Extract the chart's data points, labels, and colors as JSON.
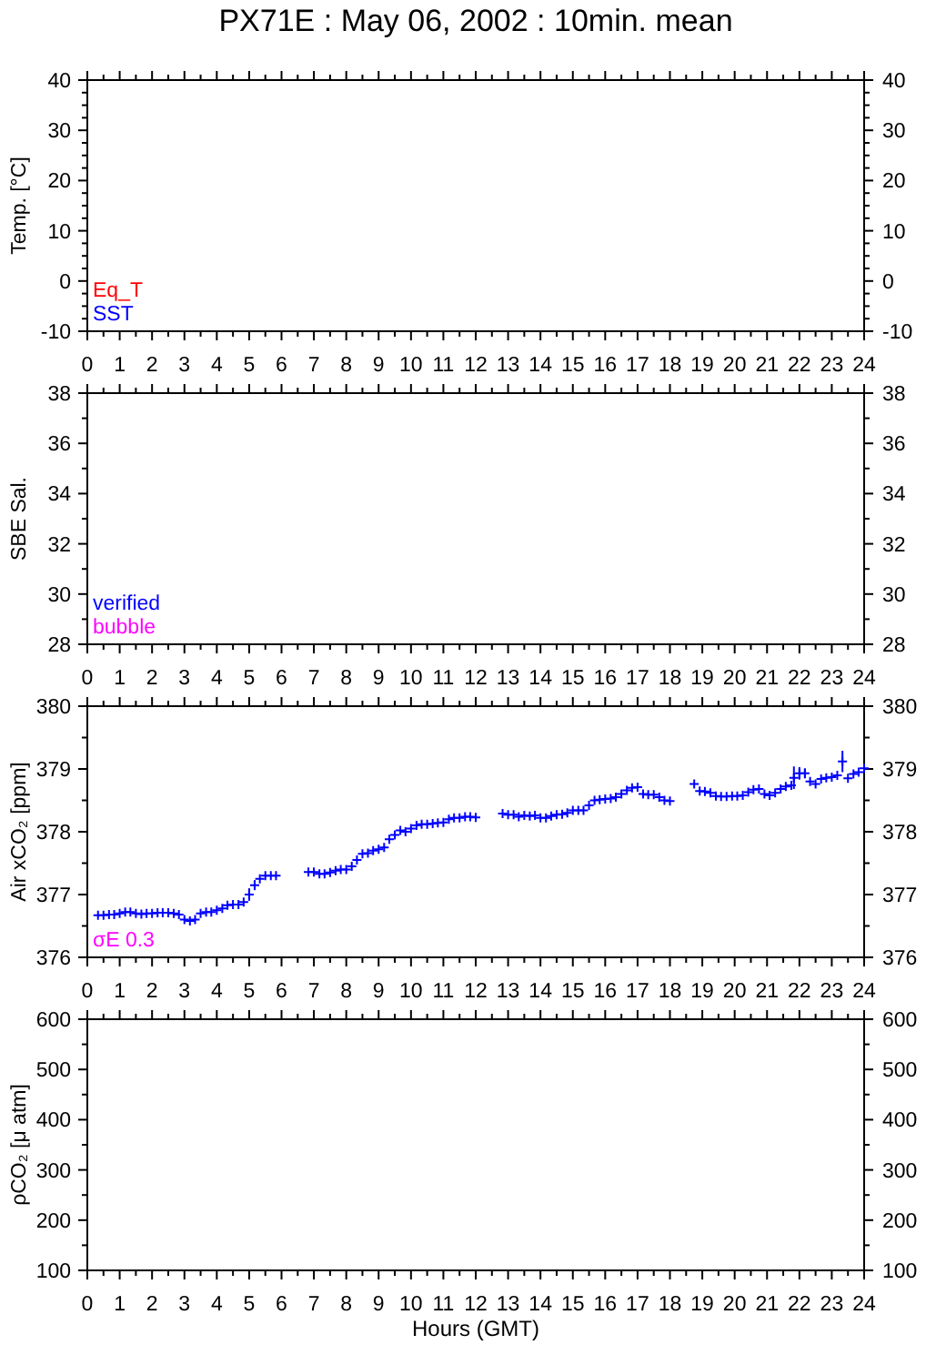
{
  "chart_data": [
    {
      "type": "scatter",
      "title": "PX71E : May 06, 2002 : 10min. mean",
      "ylabel": "Temp. [°C]",
      "annotations": [
        "Eq_T",
        "SST"
      ],
      "xlim": [
        0,
        24
      ],
      "xticks": [
        0,
        {
          "value": 0.5,
          "label": null
        },
        1,
        {
          "value": 1.5,
          "label": null
        },
        2,
        {
          "value": 2.5,
          "label": null
        },
        3,
        {
          "value": 3.5,
          "label": null
        },
        4,
        {
          "value": 4.5,
          "label": null
        },
        5,
        {
          "value": 5.5,
          "label": null
        },
        6,
        {
          "value": 6.5,
          "label": null
        },
        7,
        {
          "value": 7.5,
          "label": null
        },
        8,
        {
          "value": 8.5,
          "label": null
        },
        9,
        {
          "value": 9.5,
          "label": null
        },
        10,
        {
          "value": 10.5,
          "label": null
        },
        11,
        {
          "value": 11.5,
          "label": null
        },
        12,
        {
          "value": 12.5,
          "label": null
        },
        13,
        {
          "value": 13.5,
          "label": null
        },
        14,
        {
          "value": 14.5,
          "label": null
        },
        15,
        {
          "value": 15.5,
          "label": null
        },
        16,
        {
          "value": 16.5,
          "label": null
        },
        17,
        {
          "value": 17.5,
          "label": null
        },
        18,
        {
          "value": 18.5,
          "label": null
        },
        19,
        {
          "value": 19.5,
          "label": null
        },
        20,
        {
          "value": 20.5,
          "label": null
        },
        21,
        {
          "value": 21.5,
          "label": null
        },
        22,
        {
          "value": 22.5,
          "label": null
        },
        23,
        {
          "value": 23.5,
          "label": null
        },
        24
      ],
      "ylim": [
        -10,
        40
      ],
      "yticks": [
        -10,
        {
          "value": -7.5,
          "label": null
        },
        {
          "value": -5,
          "label": null
        },
        {
          "value": -2.5,
          "label": null
        },
        0,
        {
          "value": 2.5,
          "label": null
        },
        {
          "value": 5,
          "label": null
        },
        {
          "value": 7.5,
          "label": null
        },
        10,
        {
          "value": 12.5,
          "label": null
        },
        {
          "value": 15,
          "label": null
        },
        {
          "value": 17.5,
          "label": null
        },
        20,
        {
          "value": 22.5,
          "label": null
        },
        {
          "value": 25,
          "label": null
        },
        {
          "value": 27.5,
          "label": null
        },
        30,
        {
          "value": 32.5,
          "label": null
        },
        {
          "value": 35,
          "label": null
        },
        {
          "value": 37.5,
          "label": null
        },
        40
      ],
      "y2lim": [
        -10,
        40
      ],
      "y2ticks": [
        -10,
        {
          "value": -7.5,
          "label": null
        },
        {
          "value": -5,
          "label": null
        },
        {
          "value": -2.5,
          "label": null
        },
        0,
        {
          "value": 2.5,
          "label": null
        },
        {
          "value": 5,
          "label": null
        },
        {
          "value": 7.5,
          "label": null
        },
        10,
        {
          "value": 12.5,
          "label": null
        },
        {
          "value": 15,
          "label": null
        },
        {
          "value": 17.5,
          "label": null
        },
        20,
        {
          "value": 22.5,
          "label": null
        },
        {
          "value": 25,
          "label": null
        },
        {
          "value": 27.5,
          "label": null
        },
        30,
        {
          "value": 32.5,
          "label": null
        },
        {
          "value": 35,
          "label": null
        },
        {
          "value": 37.5,
          "label": null
        },
        40
      ]
    },
    {
      "type": "scatter",
      "ylabel": "SBE Sal.",
      "annotations": [
        "verified",
        "bubble"
      ],
      "xlim": [
        0,
        24
      ],
      "xticks": [
        0,
        {
          "value": 0.5,
          "label": null
        },
        1,
        {
          "value": 1.5,
          "label": null
        },
        2,
        {
          "value": 2.5,
          "label": null
        },
        3,
        {
          "value": 3.5,
          "label": null
        },
        4,
        {
          "value": 4.5,
          "label": null
        },
        5,
        {
          "value": 5.5,
          "label": null
        },
        6,
        {
          "value": 6.5,
          "label": null
        },
        7,
        {
          "value": 7.5,
          "label": null
        },
        8,
        {
          "value": 8.5,
          "label": null
        },
        9,
        {
          "value": 9.5,
          "label": null
        },
        10,
        {
          "value": 10.5,
          "label": null
        },
        11,
        {
          "value": 11.5,
          "label": null
        },
        12,
        {
          "value": 12.5,
          "label": null
        },
        13,
        {
          "value": 13.5,
          "label": null
        },
        14,
        {
          "value": 14.5,
          "label": null
        },
        15,
        {
          "value": 15.5,
          "label": null
        },
        16,
        {
          "value": 16.5,
          "label": null
        },
        17,
        {
          "value": 17.5,
          "label": null
        },
        18,
        {
          "value": 18.5,
          "label": null
        },
        19,
        {
          "value": 19.5,
          "label": null
        },
        20,
        {
          "value": 20.5,
          "label": null
        },
        21,
        {
          "value": 21.5,
          "label": null
        },
        22,
        {
          "value": 22.5,
          "label": null
        },
        23,
        {
          "value": 23.5,
          "label": null
        },
        24
      ],
      "ylim": [
        28,
        38
      ],
      "yticks": [
        28,
        {
          "value": 29,
          "label": null
        },
        30,
        {
          "value": 31,
          "label": null
        },
        32,
        {
          "value": 33,
          "label": null
        },
        34,
        {
          "value": 35,
          "label": null
        },
        36,
        {
          "value": 37,
          "label": null
        },
        38
      ],
      "y2lim": [
        28,
        38
      ],
      "y2ticks": [
        28,
        {
          "value": 29,
          "label": null
        },
        30,
        {
          "value": 31,
          "label": null
        },
        32,
        {
          "value": 33,
          "label": null
        },
        34,
        {
          "value": 35,
          "label": null
        },
        36,
        {
          "value": 37,
          "label": null
        },
        38
      ]
    },
    {
      "type": "scatter",
      "ylabel": "Air xCO₂ [ppm]",
      "xlim": [
        0,
        24
      ],
      "xticks": [
        0,
        {
          "value": 0.5,
          "label": null
        },
        1,
        {
          "value": 1.5,
          "label": null
        },
        2,
        {
          "value": 2.5,
          "label": null
        },
        3,
        {
          "value": 3.5,
          "label": null
        },
        4,
        {
          "value": 4.5,
          "label": null
        },
        5,
        {
          "value": 5.5,
          "label": null
        },
        6,
        {
          "value": 6.5,
          "label": null
        },
        7,
        {
          "value": 7.5,
          "label": null
        },
        8,
        {
          "value": 8.5,
          "label": null
        },
        9,
        {
          "value": 9.5,
          "label": null
        },
        10,
        {
          "value": 10.5,
          "label": null
        },
        11,
        {
          "value": 11.5,
          "label": null
        },
        12,
        {
          "value": 12.5,
          "label": null
        },
        13,
        {
          "value": 13.5,
          "label": null
        },
        14,
        {
          "value": 14.5,
          "label": null
        },
        15,
        {
          "value": 15.5,
          "label": null
        },
        16,
        {
          "value": 16.5,
          "label": null
        },
        17,
        {
          "value": 17.5,
          "label": null
        },
        18,
        {
          "value": 18.5,
          "label": null
        },
        19,
        {
          "value": 19.5,
          "label": null
        },
        20,
        {
          "value": 20.5,
          "label": null
        },
        21,
        {
          "value": 21.5,
          "label": null
        },
        22,
        {
          "value": 22.5,
          "label": null
        },
        23,
        {
          "value": 23.5,
          "label": null
        },
        24
      ],
      "ylim": [
        376,
        380
      ],
      "yticks": [
        376,
        {
          "value": 376.5,
          "label": null
        },
        377,
        {
          "value": 377.5,
          "label": null
        },
        378,
        {
          "value": 378.5,
          "label": null
        },
        379,
        {
          "value": 379.5,
          "label": null
        },
        380
      ],
      "y2lim": [
        376,
        380
      ],
      "y2ticks": [
        376,
        {
          "value": 376.5,
          "label": null
        },
        377,
        {
          "value": 377.5,
          "label": null
        },
        378,
        {
          "value": 378.5,
          "label": null
        },
        379,
        {
          "value": 379.5,
          "label": null
        },
        380
      ],
      "marker": "cross",
      "annotations": [
        "σE 0.3"
      ],
      "series": [
        {
          "color": "#0000ff",
          "x": [
            0.33,
            0.5,
            0.67,
            0.83,
            1.0,
            1.17,
            1.33,
            1.5,
            1.67,
            1.83,
            2.0,
            2.17,
            2.33,
            2.5,
            2.67,
            2.83,
            3.0,
            3.17,
            3.33,
            3.5,
            3.67,
            3.83,
            4.0,
            4.17,
            4.33,
            4.5,
            4.67,
            4.83,
            5.0,
            5.17,
            5.33,
            5.5,
            5.67,
            5.83,
            6.83,
            7.0,
            7.17,
            7.33,
            7.5,
            7.67,
            7.83,
            8.0,
            8.17,
            8.33,
            8.5,
            8.67,
            8.83,
            9.0,
            9.17,
            9.33,
            9.5,
            9.67,
            9.83,
            10.0,
            10.17,
            10.33,
            10.5,
            10.67,
            10.83,
            11.0,
            11.17,
            11.33,
            11.5,
            11.67,
            11.83,
            12.0,
            12.83,
            13.0,
            13.17,
            13.33,
            13.5,
            13.67,
            13.83,
            14.0,
            14.17,
            14.33,
            14.5,
            14.67,
            14.83,
            15.0,
            15.17,
            15.33,
            15.5,
            15.67,
            15.83,
            16.0,
            16.17,
            16.33,
            16.5,
            16.67,
            16.83,
            17.0,
            17.17,
            17.33,
            17.5,
            17.67,
            17.83,
            18.0,
            18.75,
            18.92,
            19.08,
            19.25,
            19.42,
            19.58,
            19.75,
            19.92,
            20.08,
            20.25,
            20.42,
            20.58,
            20.75,
            20.92,
            21.08,
            21.25,
            21.42,
            21.58,
            21.75,
            21.83,
            22.0,
            22.17,
            22.33,
            22.5,
            22.67,
            22.83,
            23.0,
            23.17,
            23.33,
            23.5,
            23.67,
            23.83,
            24.0
          ],
          "values": [
            376.67,
            376.67,
            376.68,
            376.68,
            376.7,
            376.72,
            376.72,
            376.7,
            376.69,
            376.7,
            376.7,
            376.71,
            376.71,
            376.71,
            376.7,
            376.68,
            376.6,
            376.58,
            376.6,
            376.7,
            376.72,
            376.72,
            376.75,
            376.78,
            376.83,
            376.84,
            376.84,
            376.88,
            377.0,
            377.15,
            377.25,
            377.3,
            377.3,
            377.3,
            377.36,
            377.36,
            377.33,
            377.33,
            377.35,
            377.38,
            377.4,
            377.4,
            377.45,
            377.55,
            377.65,
            377.66,
            377.7,
            377.72,
            377.75,
            377.88,
            377.95,
            378.02,
            378.0,
            378.05,
            378.1,
            378.12,
            378.12,
            378.13,
            378.14,
            378.15,
            378.2,
            378.22,
            378.22,
            378.24,
            378.24,
            378.23,
            378.29,
            378.27,
            378.27,
            378.24,
            378.26,
            378.25,
            378.26,
            378.22,
            378.22,
            378.25,
            378.27,
            378.28,
            378.3,
            378.34,
            378.34,
            378.34,
            378.42,
            378.5,
            378.51,
            378.52,
            378.53,
            378.55,
            378.6,
            378.66,
            378.7,
            378.71,
            378.6,
            378.59,
            378.59,
            378.55,
            378.5,
            378.49,
            378.76,
            378.65,
            378.64,
            378.62,
            378.57,
            378.56,
            378.56,
            378.57,
            378.57,
            378.58,
            378.63,
            378.67,
            378.68,
            378.6,
            378.58,
            378.62,
            378.68,
            378.72,
            378.74,
            378.86,
            378.93,
            378.93,
            378.8,
            378.76,
            378.84,
            378.86,
            378.87,
            378.9,
            379.12,
            378.85,
            378.92,
            378.95,
            379.01
          ],
          "errors": [
            null,
            null,
            null,
            null,
            null,
            null,
            null,
            null,
            null,
            null,
            null,
            null,
            null,
            null,
            null,
            null,
            null,
            null,
            null,
            null,
            null,
            null,
            null,
            null,
            null,
            null,
            null,
            null,
            0.1,
            0.08,
            null,
            null,
            null,
            null,
            null,
            null,
            null,
            null,
            null,
            null,
            null,
            null,
            null,
            null,
            null,
            null,
            null,
            null,
            null,
            null,
            null,
            null,
            null,
            null,
            null,
            null,
            null,
            null,
            null,
            null,
            null,
            null,
            null,
            null,
            null,
            null,
            null,
            null,
            null,
            null,
            null,
            null,
            null,
            null,
            null,
            null,
            null,
            null,
            null,
            null,
            null,
            null,
            null,
            null,
            null,
            null,
            null,
            null,
            null,
            null,
            null,
            null,
            null,
            null,
            null,
            null,
            null,
            null,
            null,
            null,
            null,
            null,
            null,
            null,
            null,
            null,
            null,
            null,
            null,
            null,
            null,
            null,
            null,
            null,
            null,
            null,
            null,
            0.18,
            0.1,
            0.08,
            null,
            null,
            null,
            null,
            null,
            null,
            0.17,
            null,
            null,
            null,
            null
          ]
        }
      ]
    },
    {
      "type": "scatter",
      "ylabel": "ρCO₂ [μ atm]",
      "xlabel": "Hours (GMT)",
      "xlim": [
        0,
        24
      ],
      "xticks": [
        0,
        {
          "value": 0.5,
          "label": null
        },
        1,
        {
          "value": 1.5,
          "label": null
        },
        2,
        {
          "value": 2.5,
          "label": null
        },
        3,
        {
          "value": 3.5,
          "label": null
        },
        4,
        {
          "value": 4.5,
          "label": null
        },
        5,
        {
          "value": 5.5,
          "label": null
        },
        6,
        {
          "value": 6.5,
          "label": null
        },
        7,
        {
          "value": 7.5,
          "label": null
        },
        8,
        {
          "value": 8.5,
          "label": null
        },
        9,
        {
          "value": 9.5,
          "label": null
        },
        10,
        {
          "value": 10.5,
          "label": null
        },
        11,
        {
          "value": 11.5,
          "label": null
        },
        12,
        {
          "value": 12.5,
          "label": null
        },
        13,
        {
          "value": 13.5,
          "label": null
        },
        14,
        {
          "value": 14.5,
          "label": null
        },
        15,
        {
          "value": 15.5,
          "label": null
        },
        16,
        {
          "value": 16.5,
          "label": null
        },
        17,
        {
          "value": 17.5,
          "label": null
        },
        18,
        {
          "value": 18.5,
          "label": null
        },
        19,
        {
          "value": 19.5,
          "label": null
        },
        20,
        {
          "value": 20.5,
          "label": null
        },
        21,
        {
          "value": 21.5,
          "label": null
        },
        22,
        {
          "value": 22.5,
          "label": null
        },
        23,
        {
          "value": 23.5,
          "label": null
        },
        24
      ],
      "ylim": [
        100,
        600
      ],
      "yticks": [
        100,
        {
          "value": 150,
          "label": null
        },
        200,
        {
          "value": 250,
          "label": null
        },
        300,
        {
          "value": 350,
          "label": null
        },
        400,
        {
          "value": 450,
          "label": null
        },
        500,
        {
          "value": 550,
          "label": null
        },
        600
      ],
      "y2lim": [
        100,
        600
      ],
      "y2ticks": [
        100,
        {
          "value": 150,
          "label": null
        },
        200,
        {
          "value": 250,
          "label": null
        },
        300,
        {
          "value": 350,
          "label": null
        },
        400,
        {
          "value": 450,
          "label": null
        },
        500,
        {
          "value": 550,
          "label": null
        },
        600
      ]
    }
  ]
}
